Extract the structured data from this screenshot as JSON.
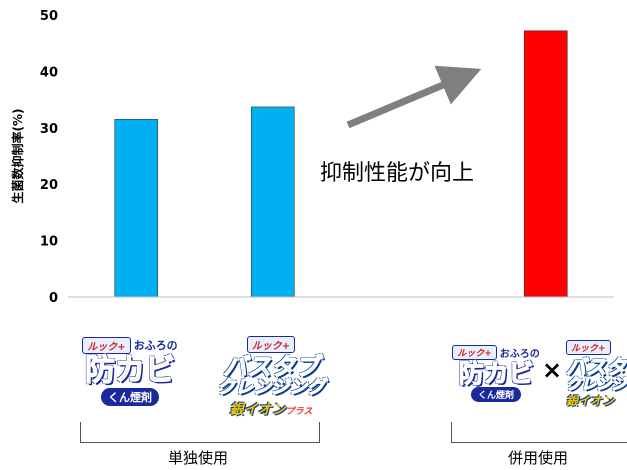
{
  "chart_data": {
    "type": "bar",
    "ylabel": "生菌数抑制率(%)",
    "xlabel": "",
    "title": "",
    "ylim": [
      0,
      50
    ],
    "yticks": [
      0,
      10,
      20,
      30,
      40,
      50
    ],
    "grid": false,
    "bars": [
      {
        "slot": 0,
        "value": 31.5,
        "color": "#00b0f0"
      },
      {
        "slot": 1,
        "value": 33.7,
        "color": "#00b0f0"
      },
      {
        "slot": 3,
        "value": 47.2,
        "color": "#ff0000"
      }
    ],
    "slots": 4,
    "annotation": "抑制性能が向上",
    "arrow_color": "#7f7f7f"
  },
  "products": {
    "p1": {
      "brand": "ルック+",
      "sub": "おふろの",
      "name": "防カビ",
      "note": "くん煙剤"
    },
    "p2": {
      "brand": "ルック+",
      "name_line1": "バスタブ",
      "name_line2": "クレンジング",
      "note": "銀イオン",
      "note_suffix": "プラス"
    },
    "p3": {
      "brand": "ルック+",
      "sub": "おふろの",
      "name": "防カビ",
      "note": "くん煙剤"
    },
    "p4": {
      "brand": "ルック+",
      "name_line1": "バスタブ",
      "name_line2": "クレンジング",
      "note": "銀イオン"
    }
  },
  "times_symbol": "×",
  "groups": {
    "single": "単独使用",
    "combined": "併用使用"
  }
}
